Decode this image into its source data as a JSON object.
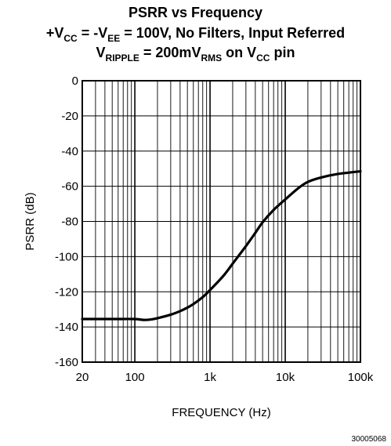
{
  "chart_data": {
    "type": "line",
    "title_lines": [
      {
        "parts": [
          {
            "text": "PSRR vs Frequency"
          }
        ]
      },
      {
        "parts": [
          {
            "text": "+V"
          },
          {
            "text": "CC",
            "sub": true
          },
          {
            "text": " = -V"
          },
          {
            "text": "EE",
            "sub": true
          },
          {
            "text": " = 100V, No Filters, Input Referred"
          }
        ]
      },
      {
        "parts": [
          {
            "text": "V"
          },
          {
            "text": "RIPPLE",
            "sub": true
          },
          {
            "text": " = 200mV"
          },
          {
            "text": "RMS",
            "sub": true
          },
          {
            "text": " on V"
          },
          {
            "text": "CC",
            "sub": true
          },
          {
            "text": " pin"
          }
        ]
      }
    ],
    "xlabel": "FREQUENCY (Hz)",
    "ylabel": "PSRR (dB)",
    "x_scale": "log",
    "xlim": [
      20,
      100000
    ],
    "ylim": [
      -160,
      0
    ],
    "grid": true,
    "x_ticks": [
      {
        "value": 20,
        "label": "20"
      },
      {
        "value": 100,
        "label": "100"
      },
      {
        "value": 1000,
        "label": "1k"
      },
      {
        "value": 10000,
        "label": "10k"
      },
      {
        "value": 100000,
        "label": "100k"
      }
    ],
    "y_ticks": [
      {
        "value": 0,
        "label": "0"
      },
      {
        "value": -20,
        "label": "-20"
      },
      {
        "value": -40,
        "label": "-40"
      },
      {
        "value": -60,
        "label": "-60"
      },
      {
        "value": -80,
        "label": "-80"
      },
      {
        "value": -100,
        "label": "-100"
      },
      {
        "value": -120,
        "label": "-120"
      },
      {
        "value": -140,
        "label": "-140"
      },
      {
        "value": -160,
        "label": "-160"
      }
    ],
    "series": [
      {
        "color": "#000000",
        "x": [
          20,
          50,
          100,
          130,
          160,
          200,
          300,
          400,
          500,
          600,
          800,
          1000,
          1500,
          2000,
          3000,
          4000,
          5000,
          7000,
          10000,
          15000,
          20000,
          30000,
          50000,
          100000
        ],
        "y": [
          -135.5,
          -135.5,
          -135.5,
          -136,
          -135.8,
          -135,
          -133,
          -131,
          -129,
          -127,
          -123,
          -119,
          -111,
          -104,
          -94,
          -86.5,
          -80.5,
          -73.5,
          -67.5,
          -61,
          -57.5,
          -55,
          -53,
          -51.5
        ]
      }
    ],
    "figure_id": "30005068"
  }
}
